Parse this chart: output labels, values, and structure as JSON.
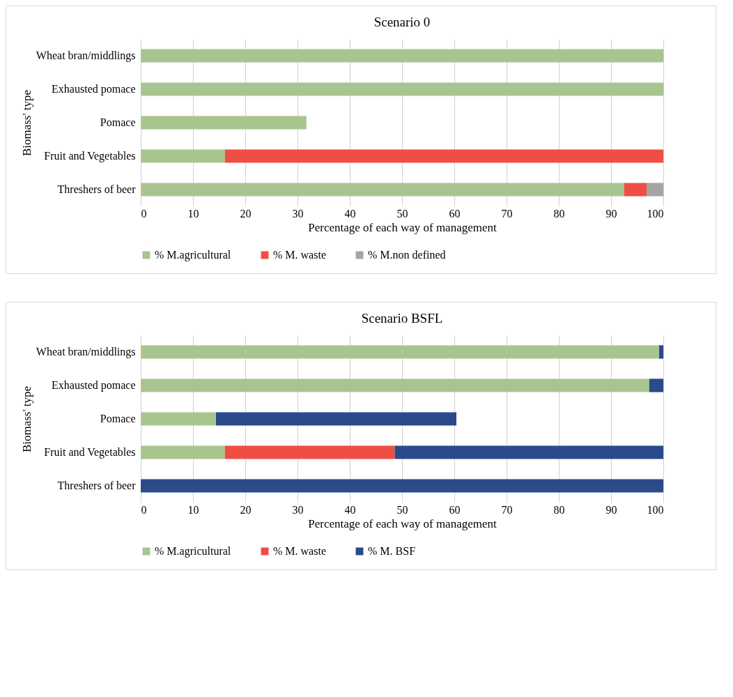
{
  "chart_data": [
    {
      "type": "bar",
      "orientation": "horizontal",
      "stacked": true,
      "title": "Scenario 0",
      "xlabel": "Percentage of each way of management",
      "ylabel": "Biomass' type",
      "categories": [
        "Wheat bran/middlings",
        "Exhausted pomace",
        "Pomace",
        "Fruit and Vegetables",
        "Threshers of beer"
      ],
      "series": [
        {
          "name": "% M.agricultural",
          "color": "#a9c58f",
          "values": [
            100,
            100,
            31.7,
            16.1,
            92.5
          ]
        },
        {
          "name": "% M. waste",
          "color": "#ee4e44",
          "values": [
            0,
            0,
            0,
            83.9,
            4.3
          ]
        },
        {
          "name": "% M.non defined",
          "color": "#a5a5a5",
          "values": [
            0,
            0,
            0,
            0,
            3.2
          ]
        }
      ],
      "xlim": [
        0,
        100
      ],
      "xticks": [
        0,
        10,
        20,
        30,
        40,
        50,
        60,
        70,
        80,
        90,
        100
      ],
      "grid": "x",
      "legend": "bottom"
    },
    {
      "type": "bar",
      "orientation": "horizontal",
      "stacked": true,
      "title": "Scenario BSFL",
      "xlabel": "Percentage of each way of management",
      "ylabel": "Biomass' type",
      "categories": [
        "Wheat bran/middlings",
        "Exhausted pomace",
        "Pomace",
        "Fruit and Vegetables",
        "Threshers of beer"
      ],
      "series": [
        {
          "name": "% M.agricultural",
          "color": "#a9c58f",
          "values": [
            99.2,
            97.3,
            14.4,
            16.1,
            0
          ]
        },
        {
          "name": "% M. waste",
          "color": "#ee4e44",
          "values": [
            0,
            0,
            0,
            32.5,
            0
          ]
        },
        {
          "name": "% M. BSF",
          "color": "#2a4a8c",
          "values": [
            0.8,
            2.7,
            46.0,
            51.4,
            100
          ]
        }
      ],
      "xlim": [
        0,
        100
      ],
      "xticks": [
        0,
        10,
        20,
        30,
        40,
        50,
        60,
        70,
        80,
        90,
        100
      ],
      "grid": "x",
      "legend": "bottom"
    }
  ]
}
